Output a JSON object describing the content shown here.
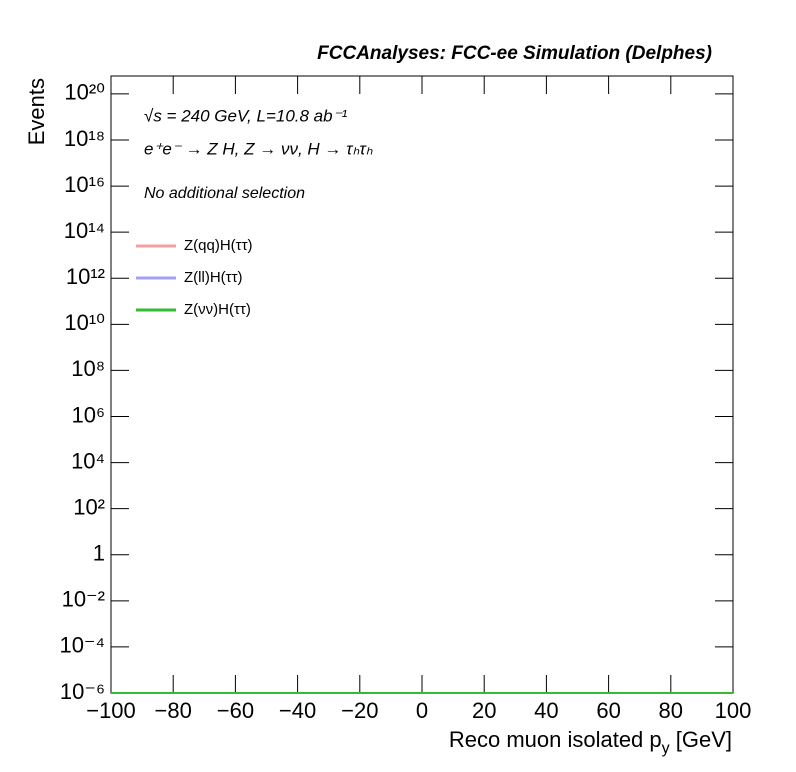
{
  "chart_data": {
    "type": "line",
    "title": "FCCAnalyses: FCC-ee Simulation (Delphes)",
    "annotations": [
      "√s = 240 GeV, L=10.8 ab⁻¹",
      "e⁺e⁻ → Z H, Z → νν, H → τₕτₕ",
      "No additional selection"
    ],
    "xlabel": [
      "Reco muon isolated p",
      "y",
      " [GeV]"
    ],
    "ylabel": "Events",
    "log_y": true,
    "xlim": [
      -100,
      100
    ],
    "ylim": [
      1e-06,
      6e+20
    ],
    "xticks": [
      {
        "value": -100,
        "label": "−100"
      },
      {
        "value": -80,
        "label": "−80"
      },
      {
        "value": -60,
        "label": "−60"
      },
      {
        "value": -40,
        "label": "−40"
      },
      {
        "value": -20,
        "label": "−20"
      },
      0,
      20,
      40,
      60,
      80,
      100
    ],
    "yticks": [
      {
        "value": 1e-06,
        "label": "10⁻⁶"
      },
      {
        "value": 0.0001,
        "label": "10⁻⁴"
      },
      {
        "value": 0.01,
        "label": "10⁻²"
      },
      1,
      {
        "value": 100.0,
        "label": "10²"
      },
      {
        "value": 10000.0,
        "label": "10⁴"
      },
      {
        "value": 1000000.0,
        "label": "10⁶"
      },
      {
        "value": 100000000.0,
        "label": "10⁸"
      },
      {
        "value": 10000000000.0,
        "label": "10¹⁰"
      },
      {
        "value": 1000000000000.0,
        "label": "10¹²"
      },
      {
        "value": 100000000000000.0,
        "label": "10¹⁴"
      },
      {
        "value": 1e+16,
        "label": "10¹⁶"
      },
      {
        "value": 1e+18,
        "label": "10¹⁸"
      },
      {
        "value": 1e+20,
        "label": "10²⁰"
      }
    ],
    "x": [
      -100,
      100
    ],
    "series": [
      {
        "name": "Z(qq)H(ττ)",
        "color": "#f4a0a0",
        "values": [
          1e-06,
          1e-06
        ]
      },
      {
        "name": "Z(ll)H(ττ)",
        "color": "#a0a0f4",
        "values": [
          1e-06,
          1e-06
        ]
      },
      {
        "name": "Z(νν)H(ττ)",
        "color": "#33bb33",
        "values": [
          1e-06,
          1e-06
        ]
      }
    ]
  }
}
